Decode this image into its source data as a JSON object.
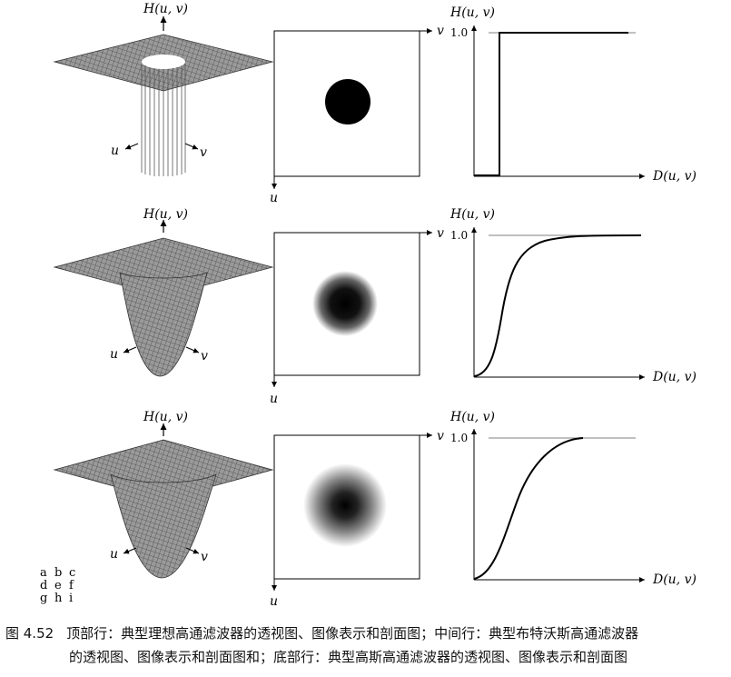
{
  "figure": {
    "rows": [
      {
        "name": "ideal",
        "perspective_axis_top": "H(u, v)",
        "perspective_axis_left": "u",
        "perspective_axis_right": "v",
        "image_axis_right": "v",
        "image_axis_down": "u",
        "profile_axis_y": "H(u, v)",
        "profile_axis_x": "D(u, v)",
        "profile_tick": "1.0"
      },
      {
        "name": "butterworth",
        "perspective_axis_top": "H(u, v)",
        "perspective_axis_left": "u",
        "perspective_axis_right": "v",
        "image_axis_right": "v",
        "image_axis_down": "u",
        "profile_axis_y": "H(u, v)",
        "profile_axis_x": "D(u, v)",
        "profile_tick": "1.0"
      },
      {
        "name": "gaussian",
        "perspective_axis_top": "H(u, v)",
        "perspective_axis_left": "u",
        "perspective_axis_right": "v",
        "image_axis_right": "v",
        "image_axis_down": "u",
        "profile_axis_y": "H(u, v)",
        "profile_axis_x": "D(u, v)",
        "profile_tick": "1.0"
      }
    ],
    "panel_letters": [
      [
        "a",
        "b",
        "c"
      ],
      [
        "d",
        "e",
        "f"
      ],
      [
        "g",
        "h",
        "i"
      ]
    ]
  },
  "caption": {
    "number": "图 4.52",
    "line1": "顶部行：典型理想高通滤波器的透视图、图像表示和剖面图；中间行：典型布特沃斯高通滤波器",
    "line2": "的透视图、图像表示和剖面图和；底部行：典型高斯高通滤波器的透视图、图像表示和剖面图"
  }
}
